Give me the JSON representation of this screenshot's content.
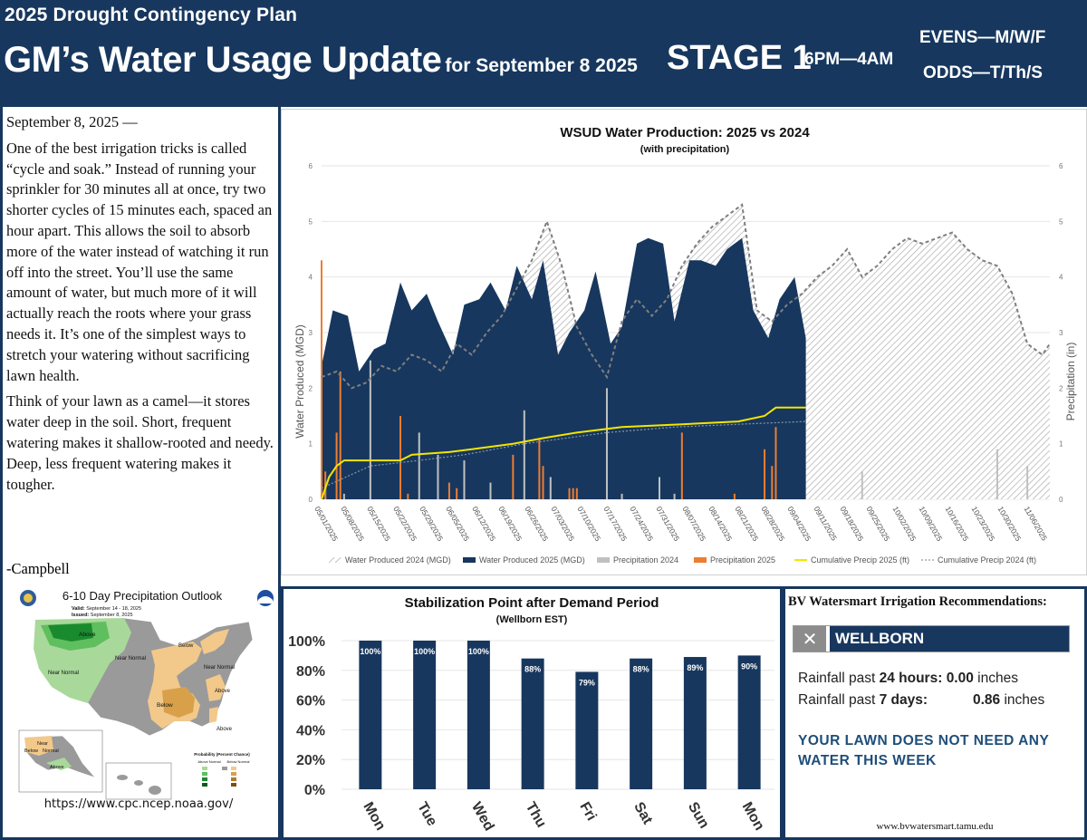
{
  "header": {
    "plan": "2025 Drought Contingency Plan",
    "title": "GM’s Water Usage Update",
    "subtitle": "for September 8 2025",
    "stage": "STAGE 1",
    "hours": "6PM—4AM",
    "evens": "EVENS—M/W/F",
    "odds": "ODDS—T/Th/S"
  },
  "article": {
    "date": "September 8, 2025 —",
    "p1": "One of the best irrigation tricks is called “cycle and soak.” Instead of running your sprinkler for 30 minutes all at once, try two shorter cycles of 15 minutes each, spaced an hour apart. This allows the soil to absorb more of the water in­stead of watching it run off into the street. You’ll use the same amount of water, but much more of it will actually reach the roots where your grass needs it. It’s one of the simplest ways to stretch your watering without sacrificing lawn health.",
    "p2": "Think of your lawn as a camel—it stores water deep in the soil. Short, frequent watering makes it shallow-rooted and needy. Deep, less frequent watering makes it tougher.",
    "signature": "-Campbell"
  },
  "outlook": {
    "title": "6-10 Day Precipitation Outlook",
    "valid_label": "Valid:",
    "valid": "September 14 - 18, 2025",
    "issued_label": "Issued:",
    "issued": "September 8, 2025",
    "labels": {
      "above": "Above",
      "below": "Below",
      "near_normal": "Near Normal",
      "near": "Near",
      "normal": "Normal"
    },
    "legend_title": "Probability (Percent Chance)",
    "legend_above": "Above Normal",
    "legend_below": "Below Normal",
    "url": "https://www.cpc.ncep.noaa.gov/",
    "colors": {
      "above_dark": "#1a8a2e",
      "above_mid": "#5fbf5f",
      "above_light": "#a8d99a",
      "near": "#9a9a9a",
      "below_light": "#f2c98a",
      "below_mid": "#d9a04a",
      "below_dark": "#b07a2a"
    }
  },
  "chart_data": [
    {
      "type": "area",
      "title": "WSUD Water Production: 2025 vs 2024",
      "subtitle": "(with precipitation)",
      "ylabel": "Water Produced (MGD)",
      "y2label": "Precipitation (in)",
      "ylim": [
        0,
        6
      ],
      "y2lim": [
        0,
        6
      ],
      "yticks": [
        0,
        1,
        2,
        3,
        4,
        5,
        6
      ],
      "grid": true,
      "legend_position": "bottom",
      "x_start": "05/01/2025",
      "x_end": "11/11/2025",
      "x_tick_labels": [
        "05/01/2025",
        "05/08/2025",
        "05/15/2025",
        "05/22/2025",
        "05/29/2025",
        "06/05/2025",
        "06/12/2025",
        "06/19/2025",
        "06/26/2025",
        "07/03/2025",
        "07/10/2025",
        "07/17/2025",
        "07/24/2025",
        "07/31/2025",
        "08/07/2025",
        "08/14/2025",
        "08/21/2025",
        "08/28/2025",
        "09/04/2025",
        "09/11/2025",
        "09/18/2025",
        "09/25/2025",
        "10/02/2025",
        "10/09/2025",
        "10/16/2025",
        "10/23/2025",
        "10/30/2025",
        "11/06/2025"
      ],
      "series": [
        {
          "name": "Water Produced 2024 (MGD)",
          "color": "#c8c8c8",
          "x": [
            "05/01/2025",
            "05/05/2025",
            "05/09/2025",
            "05/13/2025",
            "05/17/2025",
            "05/21/2025",
            "05/25/2025",
            "05/29/2025",
            "06/02/2025",
            "06/06/2025",
            "06/10/2025",
            "06/14/2025",
            "06/18/2025",
            "06/22/2025",
            "06/26/2025",
            "06/30/2025",
            "07/04/2025",
            "07/08/2025",
            "07/12/2025",
            "07/16/2025",
            "07/20/2025",
            "07/24/2025",
            "07/28/2025",
            "08/01/2025",
            "08/05/2025",
            "08/09/2025",
            "08/13/2025",
            "08/17/2025",
            "08/21/2025",
            "08/25/2025",
            "08/29/2025",
            "09/02/2025",
            "09/06/2025",
            "09/10/2025",
            "09/14/2025",
            "09/18/2025",
            "09/22/2025",
            "09/26/2025",
            "09/30/2025",
            "10/04/2025",
            "10/08/2025",
            "10/12/2025",
            "10/16/2025",
            "10/20/2025",
            "10/24/2025",
            "10/28/2025",
            "11/01/2025",
            "11/05/2025",
            "11/09/2025",
            "11/11/2025"
          ],
          "values": [
            2.2,
            2.3,
            2.0,
            2.1,
            2.4,
            2.3,
            2.6,
            2.5,
            2.3,
            2.8,
            2.6,
            3.0,
            3.3,
            3.8,
            4.3,
            5.0,
            4.2,
            3.1,
            2.6,
            2.2,
            3.2,
            3.6,
            3.3,
            3.6,
            4.2,
            4.6,
            4.9,
            5.1,
            5.3,
            3.4,
            3.2,
            3.5,
            3.7,
            4.0,
            4.2,
            4.5,
            4.0,
            4.2,
            4.5,
            4.7,
            4.6,
            4.7,
            4.8,
            4.5,
            4.3,
            4.2,
            3.7,
            2.8,
            2.6,
            2.8
          ]
        },
        {
          "name": "Water Produced 2025 (MGD)",
          "color": "#17375e",
          "x": [
            "05/01/2025",
            "05/04/2025",
            "05/08/2025",
            "05/11/2025",
            "05/15/2025",
            "05/18/2025",
            "05/22/2025",
            "05/25/2025",
            "05/29/2025",
            "06/01/2025",
            "06/05/2025",
            "06/08/2025",
            "06/12/2025",
            "06/15/2025",
            "06/19/2025",
            "06/22/2025",
            "06/26/2025",
            "06/29/2025",
            "07/03/2025",
            "07/06/2025",
            "07/10/2025",
            "07/13/2025",
            "07/17/2025",
            "07/20/2025",
            "07/24/2025",
            "07/27/2025",
            "07/31/2025",
            "08/03/2025",
            "08/07/2025",
            "08/10/2025",
            "08/14/2025",
            "08/17/2025",
            "08/21/2025",
            "08/24/2025",
            "08/28/2025",
            "08/31/2025",
            "09/04/2025",
            "09/07/2025"
          ],
          "values": [
            2.4,
            3.4,
            3.3,
            2.3,
            2.7,
            2.8,
            3.9,
            3.4,
            3.7,
            3.2,
            2.6,
            3.5,
            3.6,
            3.9,
            3.4,
            4.2,
            3.6,
            4.3,
            2.6,
            3.0,
            3.4,
            4.1,
            2.8,
            3.1,
            4.6,
            4.7,
            4.6,
            3.2,
            4.3,
            4.3,
            4.2,
            4.5,
            4.7,
            3.4,
            2.9,
            3.6,
            4.0,
            2.9
          ]
        },
        {
          "name": "Precipitation 2024",
          "color": "#c0c0c0",
          "x": [
            "05/02/2025",
            "05/07/2025",
            "05/14/2025",
            "05/27/2025",
            "06/01/2025",
            "06/08/2025",
            "06/15/2025",
            "06/24/2025",
            "07/01/2025",
            "07/16/2025",
            "07/20/2025",
            "07/30/2025",
            "08/03/2025",
            "09/22/2025",
            "10/28/2025",
            "11/05/2025"
          ],
          "values": [
            0.3,
            0.1,
            2.5,
            1.2,
            0.8,
            0.7,
            0.3,
            1.6,
            0.4,
            2.0,
            0.1,
            0.4,
            0.1,
            0.5,
            0.9,
            0.6
          ]
        },
        {
          "name": "Precipitation 2025",
          "color": "#ed7d31",
          "x": [
            "05/01/2025",
            "05/02/2025",
            "05/05/2025",
            "05/06/2025",
            "05/22/2025",
            "05/24/2025",
            "06/04/2025",
            "06/06/2025",
            "06/21/2025",
            "06/28/2025",
            "06/29/2025",
            "07/06/2025",
            "07/07/2025",
            "07/08/2025",
            "08/05/2025",
            "08/19/2025",
            "08/27/2025",
            "08/29/2025",
            "08/30/2025"
          ],
          "values": [
            4.3,
            0.5,
            1.2,
            2.3,
            1.5,
            0.1,
            0.3,
            0.2,
            0.8,
            1.1,
            0.6,
            0.2,
            0.2,
            0.2,
            1.2,
            0.1,
            0.9,
            0.6,
            1.3
          ]
        },
        {
          "name": "Cumulative Precip 2025 (ft)",
          "color": "#f2e600",
          "x": [
            "05/01/2025",
            "05/03/2025",
            "05/05/2025",
            "05/07/2025",
            "05/22/2025",
            "05/25/2025",
            "06/04/2025",
            "06/10/2025",
            "06/21/2025",
            "06/29/2025",
            "07/08/2025",
            "07/20/2025",
            "08/05/2025",
            "08/20/2025",
            "08/27/2025",
            "08/30/2025",
            "09/07/2025"
          ],
          "values": [
            0.0,
            0.4,
            0.6,
            0.7,
            0.7,
            0.8,
            0.85,
            0.9,
            1.0,
            1.1,
            1.2,
            1.3,
            1.35,
            1.4,
            1.5,
            1.65,
            1.65
          ]
        },
        {
          "name": "Cumulative Precip 2024 (ft)",
          "color": "#8a96a6",
          "x": [
            "05/01/2025",
            "05/14/2025",
            "05/27/2025",
            "06/08/2025",
            "06/24/2025",
            "07/16/2025",
            "08/03/2025",
            "08/20/2025",
            "09/07/2025"
          ],
          "values": [
            0.2,
            0.6,
            0.7,
            0.8,
            1.0,
            1.2,
            1.3,
            1.35,
            1.4
          ]
        }
      ]
    },
    {
      "type": "bar",
      "title": "Stabilization Point after Demand Period",
      "subtitle": "(Wellborn EST)",
      "categories": [
        "Mon",
        "Tue",
        "Wed",
        "Thu",
        "Fri",
        "Sat",
        "Sun",
        "Mon"
      ],
      "values": [
        100,
        100,
        100,
        88,
        79,
        88,
        89,
        90
      ],
      "value_labels": [
        "100%",
        "100%",
        "100%",
        "88%",
        "79%",
        "88%",
        "89%",
        "90%"
      ],
      "ylim": [
        0,
        100
      ],
      "yticks": [
        "0%",
        "20%",
        "40%",
        "60%",
        "80%",
        "100%"
      ],
      "color": "#17375e",
      "grid": true
    }
  ],
  "bv": {
    "title": "BV Watersmart Irrigation Recommendations:",
    "close_glyph": "✕",
    "location": "WELLBORN",
    "r1_prefix": "Rainfall past ",
    "r1_period": "24 hours",
    "r1_value": "0.00",
    "r1_unit": " inches",
    "r2_prefix": "Rainfall past ",
    "r2_period": "7 days",
    "r2_value": "0.86",
    "r2_unit": " inches",
    "advice": "YOUR LAWN DOES NOT NEED ANY WATER THIS WEEK",
    "url": "www.bvwatersmart.tamu.edu"
  }
}
